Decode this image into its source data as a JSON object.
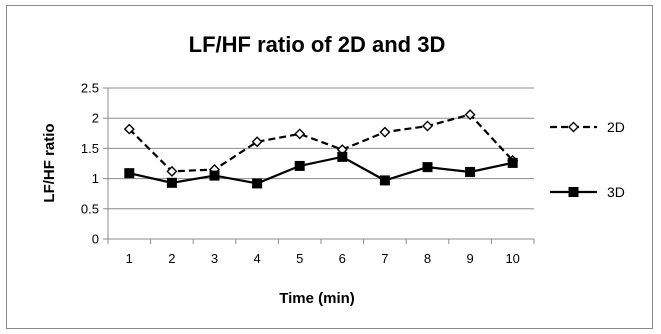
{
  "chart_data": {
    "type": "line",
    "title": "LF/HF ratio of 2D and 3D",
    "xlabel": "Time (min)",
    "ylabel": "LF/HF ratio",
    "categories": [
      "1",
      "2",
      "3",
      "4",
      "5",
      "6",
      "7",
      "8",
      "9",
      "10"
    ],
    "ylim": [
      0,
      2.5
    ],
    "yticks": [
      "0",
      "0.5",
      "1",
      "1.5",
      "2",
      "2.5"
    ],
    "grid": true,
    "legend_position": "right",
    "series": [
      {
        "name": "2D",
        "values": [
          1.82,
          1.12,
          1.15,
          1.61,
          1.74,
          1.48,
          1.77,
          1.87,
          2.06,
          1.3
        ],
        "line_style": "dashed",
        "marker": "open-diamond",
        "color": "#000000"
      },
      {
        "name": "3D",
        "values": [
          1.09,
          0.93,
          1.05,
          0.92,
          1.21,
          1.36,
          0.97,
          1.19,
          1.11,
          1.26
        ],
        "line_style": "solid",
        "marker": "filled-square",
        "color": "#000000"
      }
    ]
  }
}
